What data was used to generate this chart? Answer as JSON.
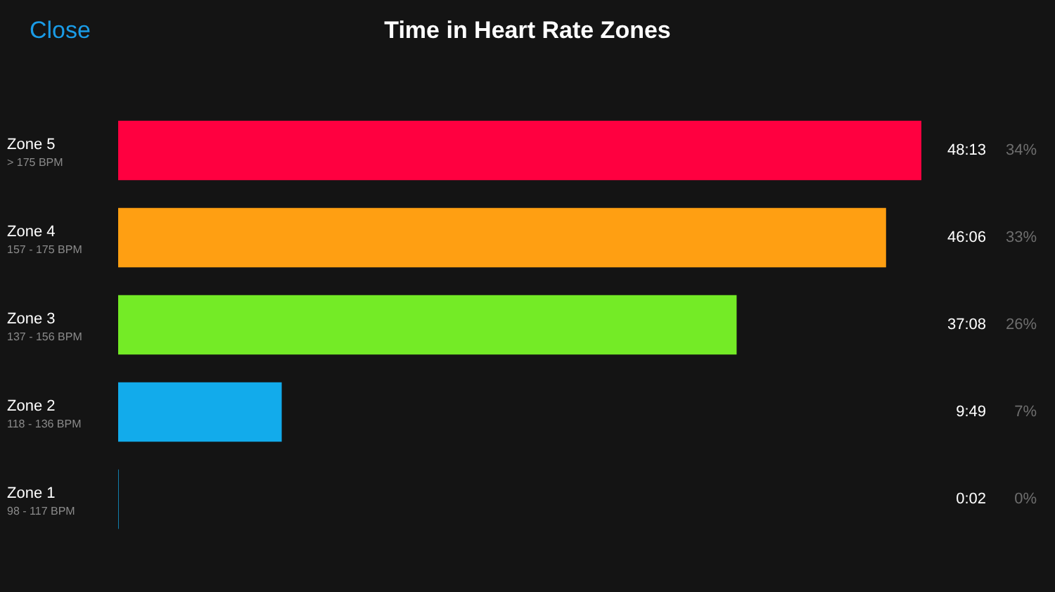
{
  "chart_data": {
    "type": "bar",
    "orientation": "horizontal",
    "title": "Time in Heart Rate Zones",
    "categories": [
      "Zone 5",
      "Zone 4",
      "Zone 3",
      "Zone 2",
      "Zone 1"
    ],
    "values": [
      48.22,
      46.1,
      37.13,
      9.82,
      0.03
    ],
    "value_labels": [
      "48:13",
      "46:06",
      "37:08",
      "9:49",
      "0:02"
    ],
    "colors": [
      "#ff0040",
      "#ff9f12",
      "#74eb26",
      "#12abeb",
      "#12abeb"
    ],
    "annotations": [
      "Close",
      "> 175 BPM",
      "157 - 175 BPM",
      "137 - 156 BPM",
      "118 - 136 BPM",
      "98 - 117 BPM",
      "34%",
      "33%",
      "26%",
      "7%",
      "0%"
    ]
  }
}
